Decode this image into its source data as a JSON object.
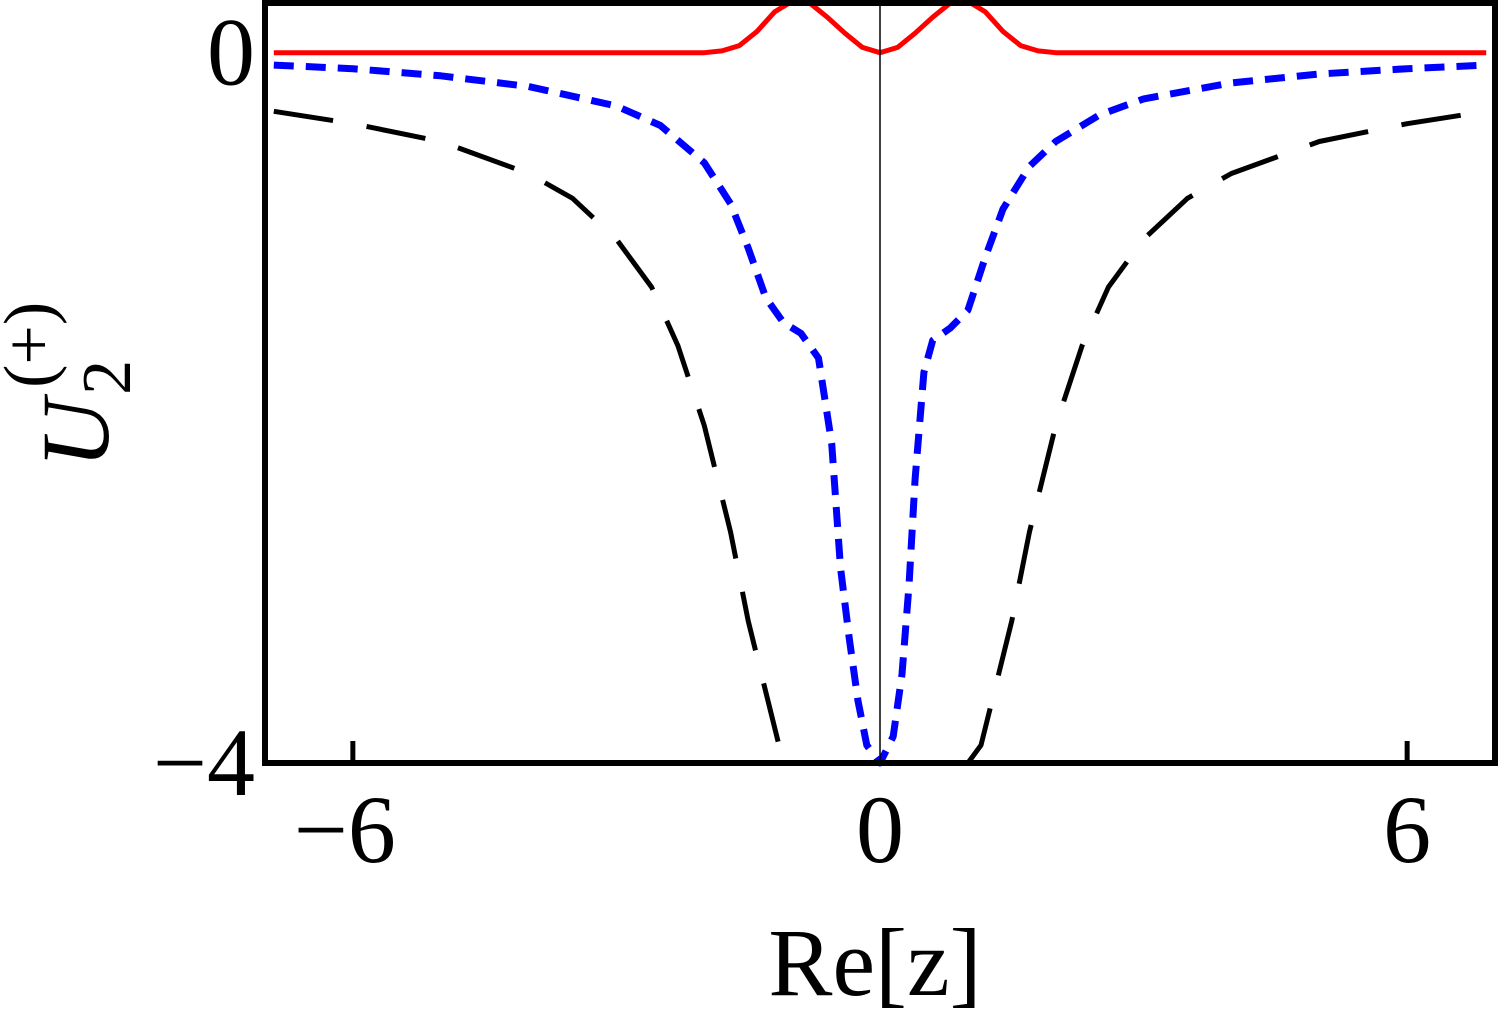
{
  "chart_data": {
    "type": "line",
    "title": "",
    "xlabel": "Re[z]",
    "ylabel": {
      "main": "U",
      "sub": "2",
      "sup": "(+)"
    },
    "xlim": [
      -7.0,
      7.0
    ],
    "ylim": [
      -4.0,
      0.28
    ],
    "xticks": [
      {
        "value": -6,
        "label": "−6"
      },
      {
        "value": 0,
        "label": "0"
      },
      {
        "value": 6,
        "label": "6"
      }
    ],
    "yticks": [
      {
        "value": 0,
        "label": "0"
      },
      {
        "value": -4,
        "label": "−4"
      }
    ],
    "grid": false,
    "series": [
      {
        "style": "solid",
        "color": "#ff0000",
        "points": [
          [
            -6.9,
            0.0
          ],
          [
            -5.0,
            0.0
          ],
          [
            -3.0,
            0.0
          ],
          [
            -2.0,
            0.0
          ],
          [
            -1.8,
            0.01
          ],
          [
            -1.6,
            0.04
          ],
          [
            -1.4,
            0.12
          ],
          [
            -1.2,
            0.23
          ],
          [
            -1.0,
            0.29
          ],
          [
            -0.9,
            0.3
          ],
          [
            -0.8,
            0.28
          ],
          [
            -0.6,
            0.2
          ],
          [
            -0.4,
            0.11
          ],
          [
            -0.2,
            0.03
          ],
          [
            0.0,
            0.0
          ],
          [
            0.2,
            0.03
          ],
          [
            0.4,
            0.11
          ],
          [
            0.6,
            0.2
          ],
          [
            0.8,
            0.28
          ],
          [
            0.9,
            0.3
          ],
          [
            1.0,
            0.29
          ],
          [
            1.2,
            0.23
          ],
          [
            1.4,
            0.12
          ],
          [
            1.6,
            0.04
          ],
          [
            1.8,
            0.01
          ],
          [
            2.0,
            0.0
          ],
          [
            3.0,
            0.0
          ],
          [
            5.0,
            0.0
          ],
          [
            6.9,
            0.0
          ]
        ]
      },
      {
        "style": "short-dash",
        "color": "#0000ff",
        "points": [
          [
            -6.9,
            -0.07
          ],
          [
            -6.0,
            -0.09
          ],
          [
            -5.0,
            -0.13
          ],
          [
            -4.0,
            -0.19
          ],
          [
            -3.0,
            -0.3
          ],
          [
            -2.5,
            -0.41
          ],
          [
            -2.0,
            -0.62
          ],
          [
            -1.7,
            -0.85
          ],
          [
            -1.5,
            -1.1
          ],
          [
            -1.3,
            -1.38
          ],
          [
            -1.1,
            -1.52
          ],
          [
            -0.9,
            -1.58
          ],
          [
            -0.7,
            -1.72
          ],
          [
            -0.55,
            -2.2
          ],
          [
            -0.45,
            -2.9
          ],
          [
            -0.35,
            -3.3
          ],
          [
            -0.25,
            -3.65
          ],
          [
            -0.15,
            -3.9
          ],
          [
            0.0,
            -4.0
          ],
          [
            0.15,
            -3.85
          ],
          [
            0.25,
            -3.5
          ],
          [
            0.33,
            -3.0
          ],
          [
            0.4,
            -2.4
          ],
          [
            0.5,
            -1.8
          ],
          [
            0.6,
            -1.62
          ],
          [
            0.8,
            -1.55
          ],
          [
            1.0,
            -1.45
          ],
          [
            1.2,
            -1.15
          ],
          [
            1.4,
            -0.88
          ],
          [
            1.7,
            -0.64
          ],
          [
            2.0,
            -0.5
          ],
          [
            2.5,
            -0.35
          ],
          [
            3.0,
            -0.26
          ],
          [
            4.0,
            -0.17
          ],
          [
            5.0,
            -0.12
          ],
          [
            6.0,
            -0.09
          ],
          [
            6.9,
            -0.07
          ]
        ]
      },
      {
        "style": "long-dash",
        "color": "#000000",
        "points": [
          [
            -6.9,
            -0.33
          ],
          [
            -6.0,
            -0.4
          ],
          [
            -5.0,
            -0.5
          ],
          [
            -4.0,
            -0.68
          ],
          [
            -3.5,
            -0.82
          ],
          [
            -3.0,
            -1.05
          ],
          [
            -2.6,
            -1.32
          ],
          [
            -2.3,
            -1.65
          ],
          [
            -2.0,
            -2.1
          ],
          [
            -1.7,
            -2.7
          ],
          [
            -1.5,
            -3.2
          ],
          [
            -1.3,
            -3.6
          ],
          [
            -1.15,
            -3.9
          ],
          [
            -1.0,
            -4.0
          ]
        ]
      },
      {
        "style": "long-dash",
        "color": "#000000",
        "points": [
          [
            1.0,
            -4.0
          ],
          [
            1.15,
            -3.9
          ],
          [
            1.3,
            -3.6
          ],
          [
            1.5,
            -3.2
          ],
          [
            1.7,
            -2.7
          ],
          [
            2.0,
            -2.1
          ],
          [
            2.3,
            -1.65
          ],
          [
            2.6,
            -1.32
          ],
          [
            3.0,
            -1.05
          ],
          [
            3.5,
            -0.82
          ],
          [
            4.0,
            -0.68
          ],
          [
            5.0,
            -0.5
          ],
          [
            6.0,
            -0.4
          ],
          [
            6.9,
            -0.33
          ]
        ]
      }
    ]
  }
}
